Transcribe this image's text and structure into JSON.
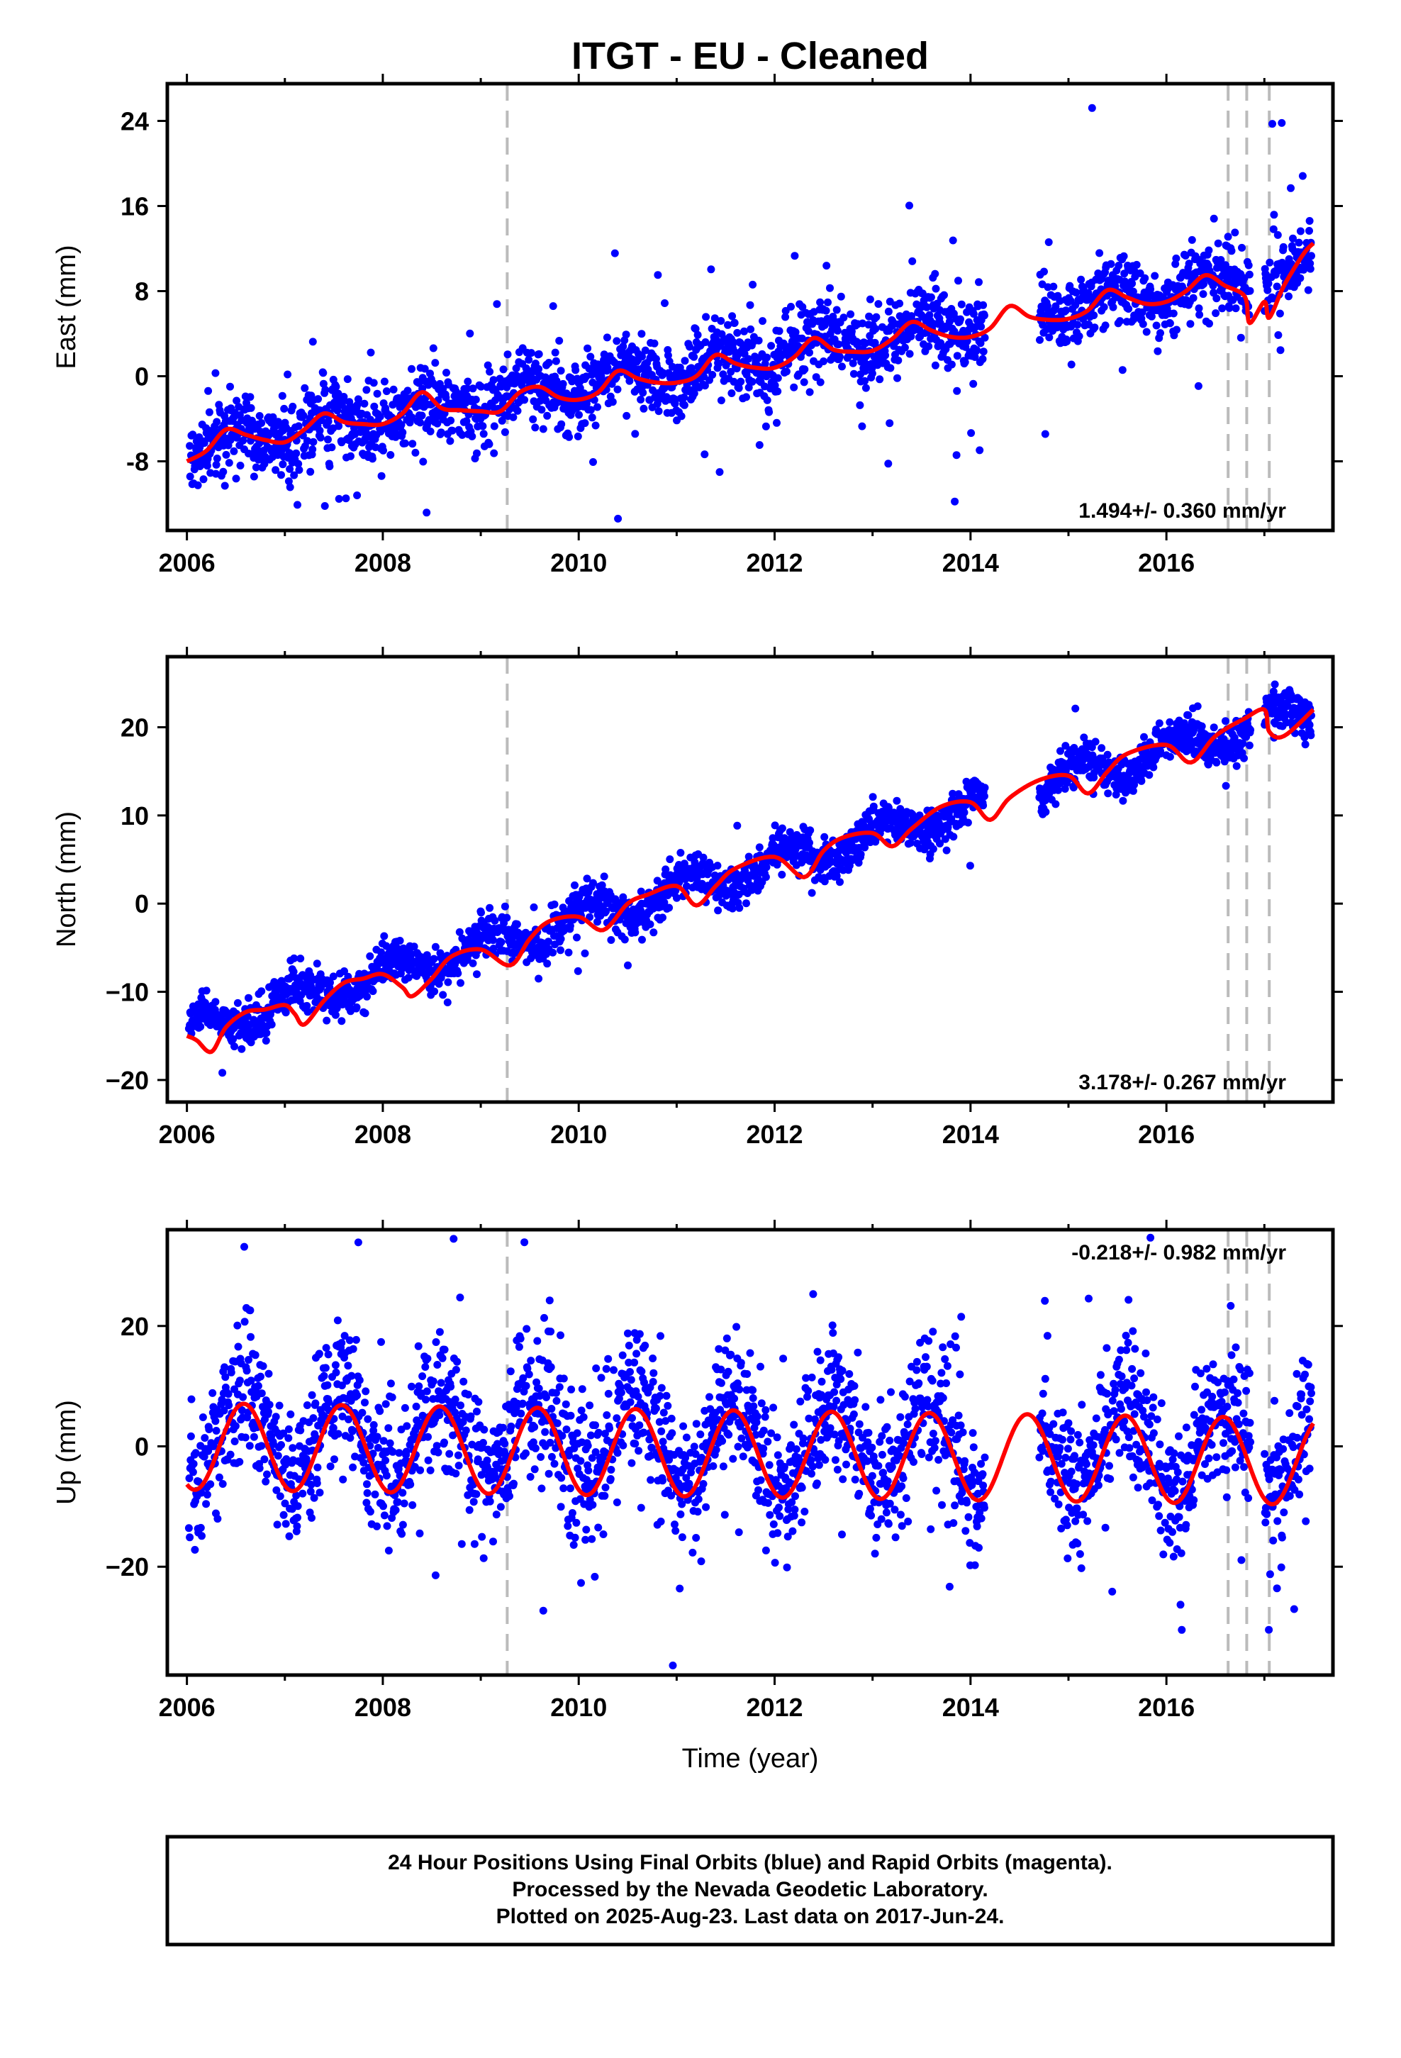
{
  "title": "ITGT  - EU - Cleaned",
  "colors": {
    "final_orbits": "#0000ff",
    "model": "#ff0000",
    "events": "#bbbbbb",
    "frame": "#000000"
  },
  "chart_data": [
    {
      "type": "scatter",
      "ylabel": "East (mm)",
      "xlabel": "",
      "xlim": [
        2005.8,
        2017.7
      ],
      "ylim": [
        -14.5,
        27.5
      ],
      "xticks": [
        2006,
        2008,
        2010,
        2012,
        2014,
        2016
      ],
      "xtick_labels": [
        "2006",
        "2008",
        "2010",
        "2012",
        "2014",
        "2016"
      ],
      "yticks": [
        -8,
        0,
        8,
        16,
        24
      ],
      "ytick_labels": [
        "-8",
        "0",
        "8",
        "16",
        "24"
      ],
      "rate_label": "1.494+/- 0.360 mm/yr",
      "rate_position": "bottom-right",
      "event_lines": [
        2009.27,
        2016.63,
        2016.82,
        2017.05
      ],
      "gaps": [
        [
          2014.15,
          2014.7
        ],
        [
          2016.86,
          2017.0
        ]
      ],
      "series": [
        {
          "kind": "model",
          "x": [
            2006.0,
            2006.2,
            2006.4,
            2006.6,
            2006.8,
            2007.0,
            2007.2,
            2007.4,
            2007.6,
            2007.8,
            2008.0,
            2008.2,
            2008.4,
            2008.6,
            2008.8,
            2009.0,
            2009.2,
            2009.4,
            2009.6,
            2009.8,
            2010.0,
            2010.2,
            2010.4,
            2010.6,
            2010.8,
            2011.0,
            2011.2,
            2011.4,
            2011.6,
            2011.8,
            2012.0,
            2012.2,
            2012.4,
            2012.6,
            2012.8,
            2013.0,
            2013.2,
            2013.4,
            2013.6,
            2013.8,
            2014.0,
            2014.2,
            2014.4,
            2014.6,
            2014.8,
            2015.0,
            2015.2,
            2015.4,
            2015.6,
            2015.8,
            2016.0,
            2016.2,
            2016.4,
            2016.6,
            2016.8,
            2016.85,
            2017.0,
            2017.05,
            2017.2,
            2017.4,
            2017.5
          ],
          "y": [
            -8.0,
            -7.0,
            -5.0,
            -5.5,
            -6.0,
            -6.2,
            -5.0,
            -3.5,
            -4.3,
            -4.5,
            -4.5,
            -3.5,
            -1.5,
            -3.0,
            -3.2,
            -3.3,
            -3.3,
            -1.5,
            -1.0,
            -2.0,
            -2.2,
            -1.5,
            0.5,
            -0.2,
            -0.6,
            -0.6,
            0.0,
            2.0,
            1.2,
            0.8,
            0.8,
            1.8,
            3.6,
            2.5,
            2.3,
            2.4,
            3.5,
            5.1,
            4.3,
            3.7,
            3.7,
            4.5,
            6.6,
            5.6,
            5.3,
            5.4,
            6.2,
            8.1,
            7.4,
            6.8,
            7.0,
            8.0,
            9.5,
            8.5,
            7.5,
            5.0,
            7.0,
            5.5,
            8.5,
            11.5,
            12.5
          ]
        },
        {
          "kind": "points",
          "trend_slope": 1.494,
          "trend_at_2006": -6.9,
          "seasonal_amp": 1.2,
          "seasonal_phase": 0.45,
          "noise_sd": 1.7,
          "outlier_rate": 0.06,
          "outlier_sd": 6.0
        }
      ]
    },
    {
      "type": "scatter",
      "ylabel": "North (mm)",
      "xlabel": "",
      "xlim": [
        2005.8,
        2017.7
      ],
      "ylim": [
        -22.5,
        28.0
      ],
      "xticks": [
        2006,
        2008,
        2010,
        2012,
        2014,
        2016
      ],
      "xtick_labels": [
        "2006",
        "2008",
        "2010",
        "2012",
        "2014",
        "2016"
      ],
      "yticks": [
        -20,
        -10,
        0,
        10,
        20
      ],
      "ytick_labels": [
        "−20",
        "−10",
        "0",
        "10",
        "20"
      ],
      "rate_label": "3.178+/- 0.267 mm/yr",
      "rate_position": "bottom-right",
      "event_lines": [
        2009.27,
        2016.63,
        2016.82,
        2017.05
      ],
      "gaps": [
        [
          2014.15,
          2014.7
        ],
        [
          2016.86,
          2017.0
        ]
      ],
      "series": [
        {
          "kind": "model",
          "x": [
            2006.0,
            2006.1,
            2006.25,
            2006.4,
            2006.6,
            2006.8,
            2007.0,
            2007.1,
            2007.2,
            2007.4,
            2007.6,
            2007.8,
            2008.0,
            2008.2,
            2008.3,
            2008.5,
            2008.7,
            2009.0,
            2009.3,
            2009.5,
            2009.7,
            2010.0,
            2010.25,
            2010.5,
            2010.7,
            2011.0,
            2011.2,
            2011.4,
            2011.6,
            2012.0,
            2012.3,
            2012.5,
            2012.7,
            2013.0,
            2013.2,
            2013.4,
            2013.7,
            2014.0,
            2014.2,
            2014.4,
            2014.7,
            2015.0,
            2015.2,
            2015.4,
            2015.6,
            2016.0,
            2016.25,
            2016.5,
            2016.8,
            2017.0,
            2017.05,
            2017.2,
            2017.5
          ],
          "y": [
            -15.0,
            -15.5,
            -16.8,
            -14.0,
            -12.3,
            -12.0,
            -11.5,
            -12.5,
            -13.7,
            -11.0,
            -9.0,
            -8.5,
            -8.0,
            -9.5,
            -10.5,
            -8.5,
            -6.0,
            -5.2,
            -7.0,
            -4.0,
            -2.0,
            -1.5,
            -3.0,
            0.0,
            1.0,
            2.0,
            -0.2,
            2.0,
            4.0,
            5.3,
            3.0,
            6.0,
            7.5,
            8.0,
            6.5,
            8.5,
            11.0,
            11.5,
            9.5,
            12.0,
            14.0,
            14.5,
            12.5,
            15.0,
            17.0,
            18.0,
            16.0,
            19.0,
            21.0,
            22.0,
            19.5,
            19.0,
            22.0
          ]
        },
        {
          "kind": "points",
          "trend_slope": 3.178,
          "trend_at_2006": -14.5,
          "seasonal_amp": 1.6,
          "seasonal_phase": 0.1,
          "noise_sd": 1.2,
          "outlier_rate": 0.02,
          "outlier_sd": 3.0
        }
      ]
    },
    {
      "type": "scatter",
      "ylabel": "Up (mm)",
      "xlabel": "Time (year)",
      "xlim": [
        2005.8,
        2017.7
      ],
      "ylim": [
        -38.0,
        36.0
      ],
      "xticks": [
        2006,
        2008,
        2010,
        2012,
        2014,
        2016
      ],
      "xtick_labels": [
        "2006",
        "2008",
        "2010",
        "2012",
        "2014",
        "2016"
      ],
      "yticks": [
        -20,
        0,
        20
      ],
      "ytick_labels": [
        "−20",
        "0",
        "20"
      ],
      "rate_label": "-0.218+/- 0.982 mm/yr",
      "rate_position": "top-right",
      "event_lines": [
        2009.27,
        2016.63,
        2016.82,
        2017.05
      ],
      "gaps": [
        [
          2014.15,
          2014.7
        ],
        [
          2016.86,
          2017.0
        ]
      ],
      "series": [
        {
          "kind": "model",
          "seasonal_amp": 7.2,
          "peak_year_fraction": 0.58,
          "offset": 2.0,
          "trend": -0.218,
          "x_start": 2006.0,
          "x_end": 2017.5
        },
        {
          "kind": "points",
          "trend_slope": -0.218,
          "trend_at_2006": 2.0,
          "seasonal_amp": 7.2,
          "seasonal_phase": 0.58,
          "noise_sd": 5.5,
          "outlier_rate": 0.07,
          "outlier_sd": 13.0
        }
      ]
    }
  ],
  "caption": {
    "line1": "24 Hour Positions Using Final Orbits (blue) and Rapid Orbits (magenta).",
    "line2": "Processed by the Nevada Geodetic Laboratory.",
    "line3": "Plotted on 2025-Aug-23. Last data on 2017-Jun-24."
  }
}
